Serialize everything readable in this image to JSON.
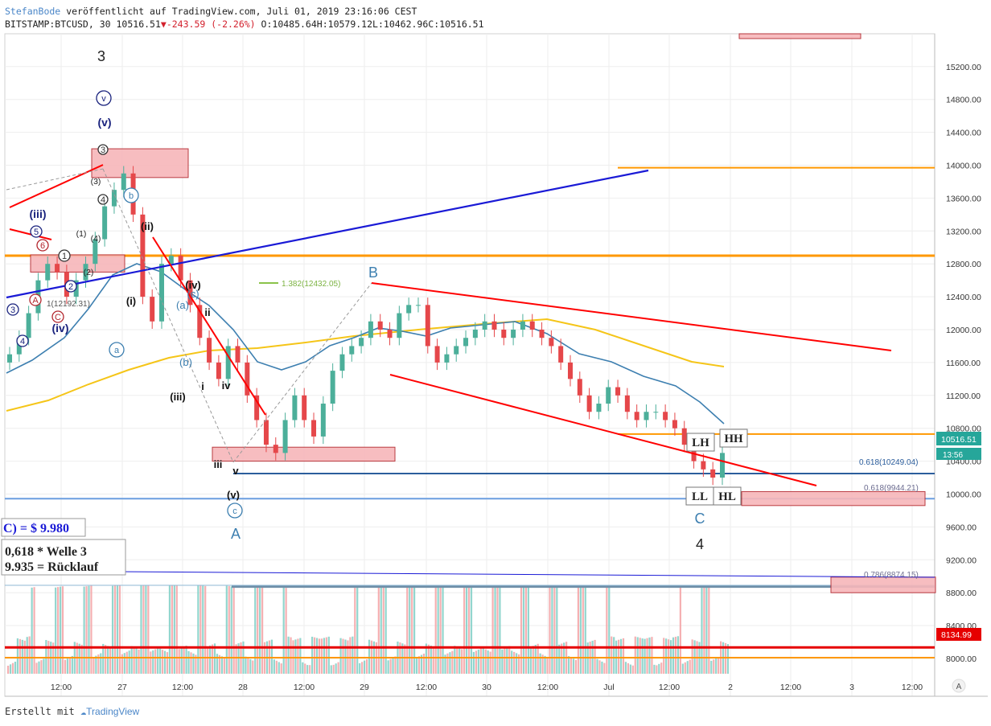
{
  "header": {
    "author": "StefanBode",
    "published": "veröffentlicht auf TradingView.com, Juli 01, 2019 23:16:06 CEST",
    "symbol": "BITSTAMP:BTCUSD, 30",
    "last": "10516.51",
    "change": "-243.59 (-2.26%)",
    "open": "O:10485.64",
    "high": "H:10579.12",
    "low": "L:10462.96",
    "close": "C:10516.51"
  },
  "footer": {
    "created_with": "Erstellt mit",
    "brand": "TradingView"
  },
  "colors": {
    "up": "#26a69a",
    "down": "#ef5350",
    "trend_red": "#ff0000",
    "trend_blue": "#1a1ad6",
    "orange": "#ff9800",
    "ma_blue": "#3d7fb0",
    "ma_yellow": "#f5c518",
    "zone_fill": "#f7b6ba",
    "level_blue": "#6b9ee0"
  },
  "chart_data": {
    "type": "candlestick",
    "title": "BITSTAMP:BTCUSD, 30",
    "ylim": [
      7700,
      15400
    ],
    "ytick_labels": [
      "15200.00",
      "14800.00",
      "14400.00",
      "14000.00",
      "13600.00",
      "13200.00",
      "12800.00",
      "12400.00",
      "12000.00",
      "11600.00",
      "11200.00",
      "10800.00",
      "10400.00",
      "10000.00",
      "9600.00",
      "9200.00",
      "8800.00",
      "8400.00",
      "8000.00"
    ],
    "xtick_labels": [
      "12:00",
      "27",
      "12:00",
      "28",
      "12:00",
      "29",
      "12:00",
      "30",
      "12:00",
      "Jul",
      "12:00",
      "2",
      "12:00",
      "3",
      "12:00"
    ],
    "price_label": "10516.51",
    "countdown_label": "13:56",
    "level_label_8134": "8134.99",
    "fib_labels": [
      "0.618(10249.04)",
      "0.618(9944.21)",
      "0.786(8874.15)",
      "1.382(12432.05)",
      "1(12192.31)"
    ],
    "candles_approx_close": [
      11700,
      11900,
      12200,
      12600,
      12800,
      12700,
      12400,
      12600,
      12800,
      13100,
      13500,
      13700,
      13900,
      13400,
      12400,
      12100,
      12800,
      12900,
      12600,
      12300,
      11900,
      11600,
      11400,
      11800,
      11600,
      11200,
      10900,
      10600,
      10500,
      10900,
      11200,
      10900,
      10700,
      11100,
      11500,
      11700,
      11800,
      11900,
      12100,
      12000,
      11900,
      12200,
      12300,
      12300,
      11800,
      11600,
      11700,
      11800,
      11900,
      12000,
      12100,
      12000,
      11900,
      12000,
      12100,
      12000,
      11900,
      11800,
      11600,
      11400,
      11200,
      11000,
      11100,
      11300,
      11200,
      11000,
      10900,
      11000,
      11000,
      10900,
      10800,
      10600,
      10400,
      10300,
      10200,
      10500
    ],
    "volume_bars_note": "volume histogram along the bottom",
    "annotations": {
      "wave_numbers": [
        "3",
        "4"
      ],
      "wave_letters": [
        "A",
        "B",
        "C"
      ],
      "roman": [
        "(v)",
        "(iii)",
        "(iv)",
        "(ii)",
        "(i)",
        "(iii)",
        "(iv)",
        "(v)",
        "ii",
        "i",
        "iv",
        "iii",
        "v"
      ],
      "circled_letters": [
        "a",
        "b",
        "c",
        "(a)",
        "(b)",
        "(c)",
        "v"
      ],
      "circled_numbers": [
        "1",
        "2",
        "3",
        "4",
        "5",
        "6"
      ],
      "small_counts": [
        "(1)",
        "(2)",
        "(3)",
        "(4)"
      ],
      "structure_boxes": [
        "LH",
        "HH",
        "LL",
        "HL"
      ],
      "note_box_1": "C) = $ 9.980",
      "note_box_2_line1": "0,618 * Welle 3",
      "note_box_2_line2": "9.935 = Rücklauf"
    }
  }
}
